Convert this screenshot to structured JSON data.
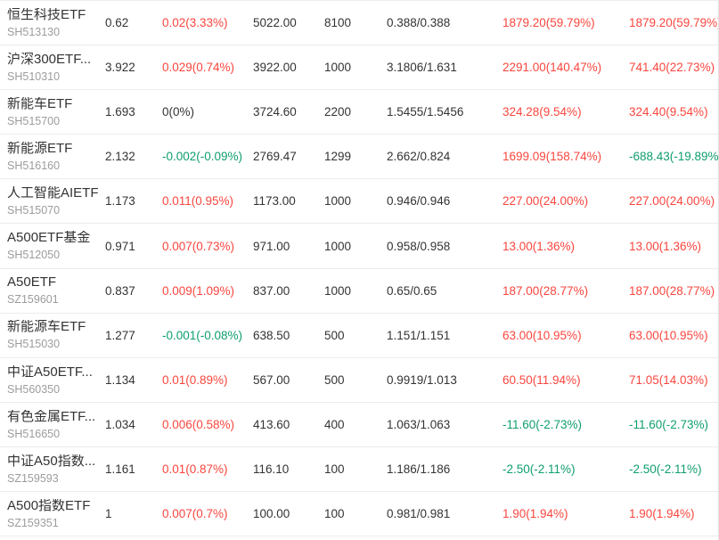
{
  "colors": {
    "up": "#fa463e",
    "down": "#0f9e6e",
    "neutral": "#333333",
    "code_gray": "#9c9c9c",
    "separator": "#ececec"
  },
  "table": {
    "rows": [
      {
        "name": "恒生科技ETF",
        "code": "SH513130",
        "price": "0.62",
        "change": "0.02(3.33%)",
        "change_dir": "up",
        "amount": "5022.00",
        "qty": "8100",
        "pair": "0.388/0.388",
        "p1": "1879.20(59.79%)",
        "p1_dir": "up",
        "p2": "1879.20(59.79%)",
        "p2_dir": "up"
      },
      {
        "name": "沪深300ETF...",
        "code": "SH510310",
        "price": "3.922",
        "change": "0.029(0.74%)",
        "change_dir": "up",
        "amount": "3922.00",
        "qty": "1000",
        "pair": "3.1806/1.631",
        "p1": "2291.00(140.47%)",
        "p1_dir": "up",
        "p2": "741.40(22.73%)",
        "p2_dir": "up"
      },
      {
        "name": "新能车ETF",
        "code": "SH515700",
        "price": "1.693",
        "change": "0(0%)",
        "change_dir": "flat",
        "amount": "3724.60",
        "qty": "2200",
        "pair": "1.5455/1.5456",
        "p1": "324.28(9.54%)",
        "p1_dir": "up",
        "p2": "324.40(9.54%)",
        "p2_dir": "up"
      },
      {
        "name": "新能源ETF",
        "code": "SH516160",
        "price": "2.132",
        "change": "-0.002(-0.09%)",
        "change_dir": "down",
        "amount": "2769.47",
        "qty": "1299",
        "pair": "2.662/0.824",
        "p1": "1699.09(158.74%)",
        "p1_dir": "up",
        "p2": "-688.43(-19.89%)",
        "p2_dir": "down"
      },
      {
        "name": "人工智能AIETF",
        "code": "SH515070",
        "price": "1.173",
        "change": "0.011(0.95%)",
        "change_dir": "up",
        "amount": "1173.00",
        "qty": "1000",
        "pair": "0.946/0.946",
        "p1": "227.00(24.00%)",
        "p1_dir": "up",
        "p2": "227.00(24.00%)",
        "p2_dir": "up"
      },
      {
        "name": "A500ETF基金",
        "code": "SH512050",
        "price": "0.971",
        "change": "0.007(0.73%)",
        "change_dir": "up",
        "amount": "971.00",
        "qty": "1000",
        "pair": "0.958/0.958",
        "p1": "13.00(1.36%)",
        "p1_dir": "up",
        "p2": "13.00(1.36%)",
        "p2_dir": "up"
      },
      {
        "name": "A50ETF",
        "code": "SZ159601",
        "price": "0.837",
        "change": "0.009(1.09%)",
        "change_dir": "up",
        "amount": "837.00",
        "qty": "1000",
        "pair": "0.65/0.65",
        "p1": "187.00(28.77%)",
        "p1_dir": "up",
        "p2": "187.00(28.77%)",
        "p2_dir": "up"
      },
      {
        "name": "新能源车ETF",
        "code": "SH515030",
        "price": "1.277",
        "change": "-0.001(-0.08%)",
        "change_dir": "down",
        "amount": "638.50",
        "qty": "500",
        "pair": "1.151/1.151",
        "p1": "63.00(10.95%)",
        "p1_dir": "up",
        "p2": "63.00(10.95%)",
        "p2_dir": "up"
      },
      {
        "name": "中证A50ETF...",
        "code": "SH560350",
        "price": "1.134",
        "change": "0.01(0.89%)",
        "change_dir": "up",
        "amount": "567.00",
        "qty": "500",
        "pair": "0.9919/1.013",
        "p1": "60.50(11.94%)",
        "p1_dir": "up",
        "p2": "71.05(14.03%)",
        "p2_dir": "up"
      },
      {
        "name": "有色金属ETF...",
        "code": "SH516650",
        "price": "1.034",
        "change": "0.006(0.58%)",
        "change_dir": "up",
        "amount": "413.60",
        "qty": "400",
        "pair": "1.063/1.063",
        "p1": "-11.60(-2.73%)",
        "p1_dir": "down",
        "p2": "-11.60(-2.73%)",
        "p2_dir": "down"
      },
      {
        "name": "中证A50指数...",
        "code": "SZ159593",
        "price": "1.161",
        "change": "0.01(0.87%)",
        "change_dir": "up",
        "amount": "116.10",
        "qty": "100",
        "pair": "1.186/1.186",
        "p1": "-2.50(-2.11%)",
        "p1_dir": "down",
        "p2": "-2.50(-2.11%)",
        "p2_dir": "down"
      },
      {
        "name": "A500指数ETF",
        "code": "SZ159351",
        "price": "1",
        "change": "0.007(0.7%)",
        "change_dir": "up",
        "amount": "100.00",
        "qty": "100",
        "pair": "0.981/0.981",
        "p1": "1.90(1.94%)",
        "p1_dir": "up",
        "p2": "1.90(1.94%)",
        "p2_dir": "up"
      }
    ]
  }
}
